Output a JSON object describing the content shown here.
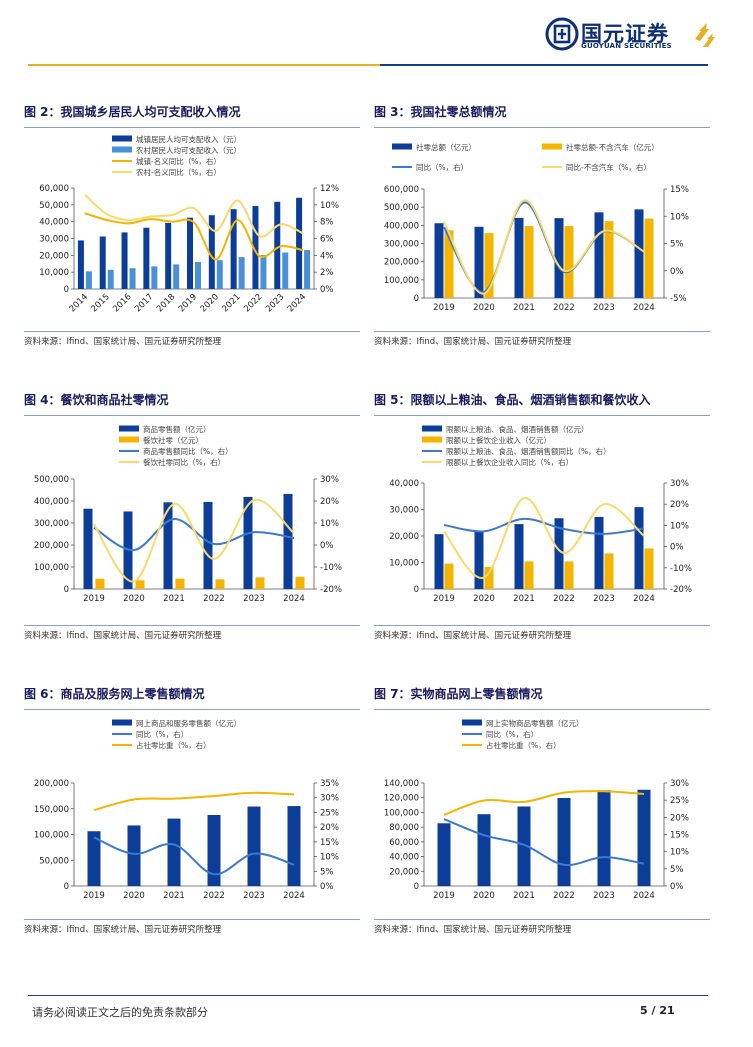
{
  "header": {
    "brand_cn": "国元证券",
    "brand_en": "GUOYUAN SECURITIES"
  },
  "footer": {
    "disclaimer": "请务必阅读正文之后的免责条款部分",
    "page": "5 / 21"
  },
  "colors": {
    "navy": "#0c3e99",
    "lightblue": "#4a90d9",
    "gold": "#f5b400",
    "lightgold": "#fbe08a",
    "line_blue": "#3a7ad0"
  },
  "panels": [
    {
      "title": "图 2：我国城乡居民人均可支配收入情况",
      "source": "资料来源：Ifind、国家统计局、国元证券研究所整理"
    },
    {
      "title": "图 3：我国社零总额情况",
      "source": "资料来源：Ifind、国家统计局、国元证券研究所整理"
    },
    {
      "title": "图 4：餐饮和商品社零情况",
      "source": "资料来源：Ifind、国家统计局、国元证券研究所整理"
    },
    {
      "title": "图 5：限额以上粮油、食品、烟酒销售额和餐饮收入",
      "source": "资料来源：Ifind、国家统计局、国元证券研究所整理"
    },
    {
      "title": "图 6：商品及服务网上零售额情况",
      "source": "资料来源：Ifind、国家统计局、国元证券研究所整理"
    },
    {
      "title": "图 7：实物商品网上零售额情况",
      "source": "资料来源：Ifind、国家统计局、国元证券研究所整理"
    }
  ],
  "chart_data": [
    {
      "type": "bar",
      "categories": [
        "2014",
        "2015",
        "2016",
        "2017",
        "2018",
        "2019",
        "2020",
        "2021",
        "2022",
        "2023",
        "2024"
      ],
      "series": [
        {
          "name": "城镇居民人均可支配收入（元）",
          "kind": "bar",
          "axis": "left",
          "values": [
            28844,
            31195,
            33616,
            36396,
            39251,
            42359,
            43834,
            47412,
            49283,
            51821,
            54188
          ]
        },
        {
          "name": "农村居民人均可支配收入（元）",
          "kind": "bar",
          "axis": "left",
          "values": [
            10489,
            11422,
            12363,
            13432,
            14617,
            16021,
            17131,
            18931,
            20133,
            21691,
            23119
          ]
        },
        {
          "name": "城镇-名义同比（%，右）",
          "kind": "line",
          "axis": "right",
          "values": [
            9.0,
            8.2,
            7.8,
            8.3,
            8.0,
            7.9,
            3.5,
            8.2,
            3.9,
            5.1,
            4.6
          ]
        },
        {
          "name": "农村-名义同比（%，右）",
          "kind": "line",
          "axis": "right",
          "values": [
            11.2,
            8.9,
            8.2,
            8.6,
            8.8,
            9.6,
            6.9,
            10.5,
            6.3,
            7.7,
            6.6
          ]
        }
      ],
      "ylim": [
        0,
        60000
      ],
      "y2lim": [
        0,
        12
      ],
      "yticks": [
        "0",
        "10,000",
        "20,000",
        "30,000",
        "40,000",
        "50,000",
        "60,000"
      ],
      "y2ticks": [
        "0%",
        "2%",
        "4%",
        "6%",
        "8%",
        "10%",
        "12%"
      ]
    },
    {
      "type": "bar",
      "categories": [
        "2019",
        "2020",
        "2021",
        "2022",
        "2023",
        "2024"
      ],
      "series": [
        {
          "name": "社零总额（亿元）",
          "kind": "bar",
          "axis": "left",
          "values": [
            411649,
            391981,
            440823,
            439733,
            471495,
            487895
          ]
        },
        {
          "name": "社零总额-不含汽车（亿元）",
          "kind": "bar",
          "axis": "left",
          "values": [
            373000,
            357000,
            396000,
            396000,
            423000,
            437000
          ]
        },
        {
          "name": "同比（%，右）",
          "kind": "line",
          "axis": "right",
          "values": [
            8.0,
            -3.9,
            12.5,
            -0.2,
            7.2,
            3.5
          ]
        },
        {
          "name": "同比-不含汽车（%，右）",
          "kind": "line",
          "axis": "right",
          "values": [
            9.0,
            -4.2,
            12.9,
            0.0,
            7.3,
            3.5
          ]
        }
      ],
      "ylim": [
        0,
        600000
      ],
      "y2lim": [
        -5,
        15
      ],
      "yticks": [
        "0",
        "100,000",
        "200,000",
        "300,000",
        "400,000",
        "500,000",
        "600,000"
      ],
      "y2ticks": [
        "-5%",
        "0%",
        "5%",
        "10%",
        "15%"
      ]
    },
    {
      "type": "bar",
      "categories": [
        "2019",
        "2020",
        "2021",
        "2022",
        "2023",
        "2024"
      ],
      "series": [
        {
          "name": "商品零售额（亿元）",
          "kind": "bar",
          "axis": "left",
          "values": [
            364928,
            352453,
            393928,
            395792,
            418605,
            432177
          ]
        },
        {
          "name": "餐饮社零（亿元）",
          "kind": "bar",
          "axis": "left",
          "values": [
            46721,
            39527,
            46895,
            43941,
            52890,
            55718
          ]
        },
        {
          "name": "商品零售额同比（%，右）",
          "kind": "line",
          "axis": "right",
          "values": [
            7.9,
            -2.3,
            11.8,
            0.5,
            5.8,
            3.2
          ]
        },
        {
          "name": "餐饮社零同比（%，右）",
          "kind": "line",
          "axis": "right",
          "values": [
            9.4,
            -16.6,
            18.6,
            -6.3,
            20.4,
            5.3
          ]
        }
      ],
      "ylim": [
        0,
        500000
      ],
      "y2lim": [
        -20,
        30
      ],
      "yticks": [
        "0",
        "100,000",
        "200,000",
        "300,000",
        "400,000",
        "500,000"
      ],
      "y2ticks": [
        "-20%",
        "-10%",
        "0%",
        "10%",
        "20%",
        "30%"
      ]
    },
    {
      "type": "bar",
      "categories": [
        "2019",
        "2020",
        "2021",
        "2022",
        "2023",
        "2024"
      ],
      "series": [
        {
          "name": "限额以上粮油、食品、烟酒销售额（亿元）",
          "kind": "bar",
          "axis": "left",
          "values": [
            20700,
            21500,
            24500,
            26700,
            27200,
            30900
          ]
        },
        {
          "name": "限额以上餐饮企业收入（亿元）",
          "kind": "bar",
          "axis": "left",
          "values": [
            9600,
            8300,
            10400,
            10400,
            13400,
            15300
          ]
        },
        {
          "name": "限额以上粮油、食品、烟酒销售额同比（%，右）",
          "kind": "line",
          "axis": "right",
          "values": [
            10.2,
            7.2,
            13.1,
            8.3,
            6.0,
            8.6
          ]
        },
        {
          "name": "限额以上餐饮企业收入同比（%，右）",
          "kind": "line",
          "axis": "right",
          "values": [
            7.1,
            -14.6,
            22.9,
            -3.0,
            20.0,
            5.0
          ]
        }
      ],
      "ylim": [
        0,
        40000
      ],
      "y2lim": [
        -20,
        30
      ],
      "yticks": [
        "0",
        "10,000",
        "20,000",
        "30,000",
        "40,000"
      ],
      "y2ticks": [
        "-20%",
        "-10%",
        "0%",
        "10%",
        "20%",
        "30%"
      ]
    },
    {
      "type": "bar",
      "categories": [
        "2019",
        "2020",
        "2021",
        "2022",
        "2023",
        "2024"
      ],
      "series": [
        {
          "name": "网上商品和服务零售额（亿元）",
          "kind": "bar",
          "axis": "left",
          "values": [
            106324,
            117601,
            130884,
            137853,
            154264,
            155225
          ]
        },
        {
          "name": "同比（%，右）",
          "kind": "line",
          "axis": "right",
          "values": [
            16.5,
            10.9,
            14.1,
            4.0,
            11.0,
            7.2
          ]
        },
        {
          "name": "占社零比重（%，右）",
          "kind": "line",
          "axis": "right",
          "values": [
            25.8,
            29.4,
            29.7,
            30.6,
            31.7,
            31.1
          ]
        }
      ],
      "ylim": [
        0,
        200000
      ],
      "y2lim": [
        0,
        35
      ],
      "yticks": [
        "0",
        "50,000",
        "100,000",
        "150,000",
        "200,000"
      ],
      "y2ticks": [
        "0%",
        "5%",
        "10%",
        "15%",
        "20%",
        "25%",
        "30%",
        "35%"
      ]
    },
    {
      "type": "bar",
      "categories": [
        "2019",
        "2020",
        "2021",
        "2022",
        "2023",
        "2024"
      ],
      "series": [
        {
          "name": "网上实物商品零售额（亿元）",
          "kind": "bar",
          "axis": "left",
          "values": [
            85239,
            97590,
            108042,
            119642,
            130174,
            130816
          ]
        },
        {
          "name": "同比（%，右）",
          "kind": "line",
          "axis": "right",
          "values": [
            19.5,
            14.8,
            12.0,
            6.2,
            8.4,
            6.5
          ]
        },
        {
          "name": "占社零比重（%，右）",
          "kind": "line",
          "axis": "right",
          "values": [
            20.7,
            24.9,
            24.5,
            27.2,
            27.6,
            26.8
          ]
        }
      ],
      "ylim": [
        0,
        140000
      ],
      "y2lim": [
        0,
        30
      ],
      "yticks": [
        "0",
        "20,000",
        "40,000",
        "60,000",
        "80,000",
        "100,000",
        "120,000",
        "140,000"
      ],
      "y2ticks": [
        "0%",
        "5%",
        "10%",
        "15%",
        "20%",
        "25%",
        "30%"
      ]
    }
  ]
}
